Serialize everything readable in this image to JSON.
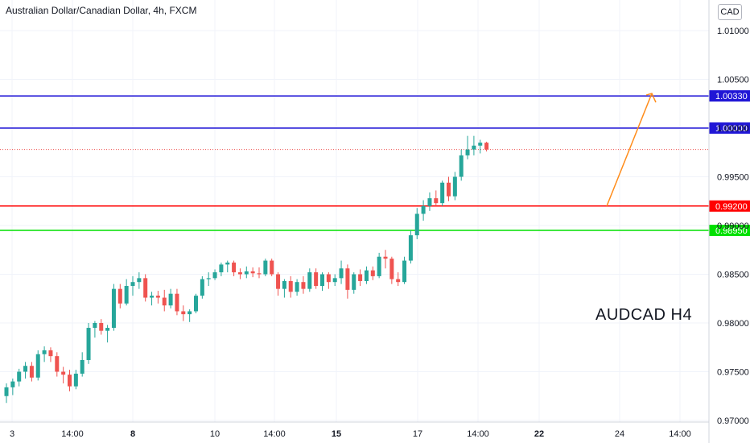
{
  "header": {
    "title": "Australian Dollar/Canadian Dollar, 4h, FXCM",
    "currency": "CAD"
  },
  "annotation": "AUDCAD H4",
  "colors": {
    "up": "#26a69a",
    "down": "#ef5350",
    "blue_line": "#2016d6",
    "red_line": "#ff0000",
    "green_line": "#00e000",
    "arrow": "#ff8c1a",
    "grid": "#f0f3fa"
  },
  "chart_data": {
    "type": "candlestick",
    "title": "Australian Dollar/Canadian Dollar, 4h, FXCM",
    "ylim": [
      0.969,
      1.0135
    ],
    "y_ticks": [
      "0.97000",
      "0.97500",
      "0.98000",
      "0.98500",
      "0.99000",
      "0.99500",
      "1.00000",
      "1.00500",
      "1.01000"
    ],
    "x_ticks": [
      {
        "label": "3",
        "bold": false
      },
      {
        "label": "14:00",
        "bold": false
      },
      {
        "label": "8",
        "bold": true
      },
      {
        "label": "10",
        "bold": false
      },
      {
        "label": "14:00",
        "bold": false
      },
      {
        "label": "15",
        "bold": true
      },
      {
        "label": "17",
        "bold": false
      },
      {
        "label": "14:00",
        "bold": false
      },
      {
        "label": "22",
        "bold": true
      },
      {
        "label": "24",
        "bold": false
      },
      {
        "label": "14:00",
        "bold": false
      }
    ],
    "horizontal_levels": [
      {
        "value": 1.0033,
        "label": "1.00330",
        "color": "#2016d6"
      },
      {
        "value": 1.0,
        "label": "1.00000",
        "color": "#2016d6"
      },
      {
        "value": 0.992,
        "label": "0.99200",
        "color": "#ff0000"
      },
      {
        "value": 0.9895,
        "label": "0.98950",
        "color": "#00e000"
      }
    ],
    "last_price": 0.9978,
    "candles": [
      [
        0.9725,
        0.9738,
        0.9718,
        0.9734
      ],
      [
        0.9734,
        0.9743,
        0.9726,
        0.974
      ],
      [
        0.974,
        0.9753,
        0.9735,
        0.975
      ],
      [
        0.975,
        0.976,
        0.9743,
        0.9756
      ],
      [
        0.9756,
        0.976,
        0.974,
        0.9744
      ],
      [
        0.9744,
        0.9772,
        0.9741,
        0.9768
      ],
      [
        0.9768,
        0.9776,
        0.976,
        0.9772
      ],
      [
        0.9772,
        0.9775,
        0.976,
        0.9766
      ],
      [
        0.9766,
        0.977,
        0.9745,
        0.975
      ],
      [
        0.975,
        0.9755,
        0.9738,
        0.9747
      ],
      [
        0.9747,
        0.9752,
        0.973,
        0.9735
      ],
      [
        0.9735,
        0.9752,
        0.9732,
        0.9748
      ],
      [
        0.9748,
        0.977,
        0.9745,
        0.9762
      ],
      [
        0.9762,
        0.98,
        0.9758,
        0.9795
      ],
      [
        0.9795,
        0.9802,
        0.9785,
        0.98
      ],
      [
        0.98,
        0.9804,
        0.9788,
        0.9792
      ],
      [
        0.9792,
        0.9798,
        0.978,
        0.9795
      ],
      [
        0.9795,
        0.984,
        0.9792,
        0.9835
      ],
      [
        0.9835,
        0.984,
        0.9815,
        0.982
      ],
      [
        0.982,
        0.9845,
        0.9818,
        0.9838
      ],
      [
        0.9838,
        0.9848,
        0.9828,
        0.9842
      ],
      [
        0.9842,
        0.9852,
        0.9835,
        0.9846
      ],
      [
        0.9846,
        0.985,
        0.9822,
        0.9826
      ],
      [
        0.9826,
        0.9832,
        0.9818,
        0.9828
      ],
      [
        0.9828,
        0.9833,
        0.982,
        0.9826
      ],
      [
        0.9826,
        0.9834,
        0.9812,
        0.9818
      ],
      [
        0.9818,
        0.9835,
        0.9815,
        0.983
      ],
      [
        0.983,
        0.9835,
        0.9808,
        0.9812
      ],
      [
        0.9812,
        0.9818,
        0.9802,
        0.9809
      ],
      [
        0.9809,
        0.9814,
        0.9801,
        0.9812
      ],
      [
        0.9812,
        0.983,
        0.981,
        0.9828
      ],
      [
        0.9828,
        0.9848,
        0.9825,
        0.9845
      ],
      [
        0.9845,
        0.9852,
        0.9838,
        0.9846
      ],
      [
        0.9846,
        0.9855,
        0.9844,
        0.9852
      ],
      [
        0.9852,
        0.9862,
        0.9848,
        0.986
      ],
      [
        0.986,
        0.9864,
        0.9852,
        0.9862
      ],
      [
        0.9862,
        0.9864,
        0.9848,
        0.9852
      ],
      [
        0.9852,
        0.9856,
        0.9845,
        0.985
      ],
      [
        0.985,
        0.9858,
        0.9846,
        0.9853
      ],
      [
        0.9853,
        0.9857,
        0.9847,
        0.9851
      ],
      [
        0.9851,
        0.9857,
        0.9846,
        0.985
      ],
      [
        0.985,
        0.9866,
        0.9848,
        0.9864
      ],
      [
        0.9864,
        0.9866,
        0.9848,
        0.985
      ],
      [
        0.985,
        0.9852,
        0.9828,
        0.9835
      ],
      [
        0.9835,
        0.9845,
        0.9826,
        0.9843
      ],
      [
        0.9843,
        0.9848,
        0.9826,
        0.9832
      ],
      [
        0.9832,
        0.9845,
        0.9828,
        0.9842
      ],
      [
        0.9842,
        0.9848,
        0.983,
        0.9835
      ],
      [
        0.9835,
        0.9856,
        0.9832,
        0.9852
      ],
      [
        0.9852,
        0.9856,
        0.9835,
        0.9838
      ],
      [
        0.9838,
        0.9852,
        0.9833,
        0.985
      ],
      [
        0.985,
        0.9852,
        0.9835,
        0.9842
      ],
      [
        0.9842,
        0.985,
        0.9838,
        0.9846
      ],
      [
        0.9846,
        0.9864,
        0.984,
        0.9856
      ],
      [
        0.9856,
        0.986,
        0.9825,
        0.9834
      ],
      [
        0.9834,
        0.9852,
        0.983,
        0.985
      ],
      [
        0.985,
        0.9855,
        0.9838,
        0.9843
      ],
      [
        0.9843,
        0.9858,
        0.984,
        0.9854
      ],
      [
        0.9854,
        0.9858,
        0.9844,
        0.9848
      ],
      [
        0.9848,
        0.9872,
        0.9846,
        0.9868
      ],
      [
        0.9868,
        0.9875,
        0.9856,
        0.9866
      ],
      [
        0.9866,
        0.9868,
        0.984,
        0.9845
      ],
      [
        0.9845,
        0.9852,
        0.9838,
        0.9842
      ],
      [
        0.9842,
        0.9868,
        0.984,
        0.9864
      ],
      [
        0.9864,
        0.9895,
        0.9861,
        0.989
      ],
      [
        0.989,
        0.9918,
        0.9886,
        0.9912
      ],
      [
        0.9912,
        0.9926,
        0.9905,
        0.992
      ],
      [
        0.992,
        0.9934,
        0.9915,
        0.9928
      ],
      [
        0.9928,
        0.9936,
        0.992,
        0.9923
      ],
      [
        0.9923,
        0.9946,
        0.992,
        0.9944
      ],
      [
        0.9944,
        0.995,
        0.9925,
        0.993
      ],
      [
        0.993,
        0.9955,
        0.9926,
        0.995
      ],
      [
        0.995,
        0.9978,
        0.9946,
        0.9972
      ],
      [
        0.9972,
        0.9992,
        0.9968,
        0.9978
      ],
      [
        0.9978,
        0.9992,
        0.9972,
        0.9982
      ],
      [
        0.9982,
        0.9988,
        0.9974,
        0.9985
      ],
      [
        0.9985,
        0.9986,
        0.9976,
        0.9978
      ]
    ]
  }
}
